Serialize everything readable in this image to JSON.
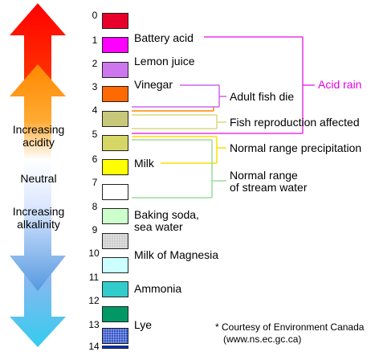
{
  "scale": {
    "levels": [
      {
        "ph": "0",
        "color": "#e8002a",
        "pattern": "solid"
      },
      {
        "ph": "1",
        "color": "#ff00ff",
        "pattern": "solid"
      },
      {
        "ph": "2",
        "color": "#cc77ee",
        "pattern": "solid"
      },
      {
        "ph": "3",
        "color": "#ff6a00",
        "pattern": "solid"
      },
      {
        "ph": "4",
        "color": "#c8c87a",
        "pattern": "solid"
      },
      {
        "ph": "5",
        "color": "#d6d666",
        "pattern": "solid"
      },
      {
        "ph": "6",
        "color": "#ffff00",
        "pattern": "solid"
      },
      {
        "ph": "7",
        "color": "#ffffff",
        "pattern": "solid"
      },
      {
        "ph": "8",
        "color": "#ccffcc",
        "pattern": "solid"
      },
      {
        "ph": "9",
        "color": "#cccccc",
        "pattern": "dotted"
      },
      {
        "ph": "10",
        "color": "#ccffff",
        "pattern": "solid"
      },
      {
        "ph": "11",
        "color": "#33cccc",
        "pattern": "solid"
      },
      {
        "ph": "12",
        "color": "#009966",
        "pattern": "solid"
      },
      {
        "ph": "13",
        "color": "#3355cc",
        "pattern": "dotted"
      },
      {
        "ph": "14",
        "color": "#0033cc",
        "pattern": "solid"
      }
    ]
  },
  "substances": {
    "battery_acid": "Battery acid",
    "lemon_juice": "Lemon juice",
    "vinegar": "Vinegar",
    "milk": "Milk",
    "baking_soda_line1": "Baking soda,",
    "baking_soda_line2": "sea water",
    "milk_of_magnesia": "Milk of Magnesia",
    "ammonia": "Ammonia",
    "lye": "Lye"
  },
  "effects": {
    "acid_rain": "Acid rain",
    "adult_fish_die": "Adult fish die",
    "fish_reproduction": "Fish reproduction affected",
    "normal_precipitation": "Normal range precipitation",
    "stream_water_line1": "Normal range",
    "stream_water_line2": "of stream water"
  },
  "arrow_labels": {
    "acidity_line1": "Increasing",
    "acidity_line2": "acidity",
    "neutral": "Neutral",
    "alkalinity_line1": "Increasing",
    "alkalinity_line2": "alkalinity"
  },
  "credit": {
    "line1": "* Courtesy of Environment Canada",
    "line2": "(www.ns.ec.gc.ca)"
  },
  "colors": {
    "acid_rain": "#ee33ee",
    "vinegar_bracket": "#cc66ee",
    "adult_fish_bracket": "#ff8800",
    "fish_reproduction_bracket": "#d8d880",
    "precipitation_bracket": "#ffdd00",
    "stream_bracket": "#99dd99",
    "arrow_red": "#ff0000",
    "arrow_orange": "#ff8800",
    "arrow_blue": "#66aaee",
    "arrow_cyan": "#33ccee"
  }
}
